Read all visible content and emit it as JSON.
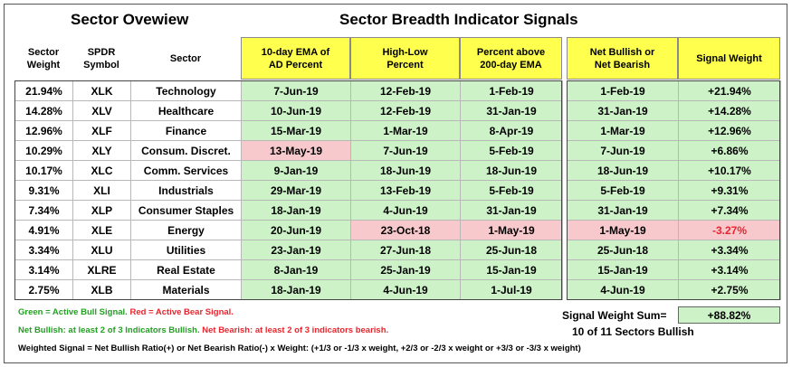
{
  "titles": {
    "left": "Sector Ovewiew",
    "right": "Sector Breadth Indicator Signals"
  },
  "headers": {
    "weight": "Sector\nWeight",
    "symbol": "SPDR\nSymbol",
    "sector": "Sector",
    "ad": "10-day EMA of\nAD Percent",
    "hl": "High-Low\nPercent",
    "p200": "Percent above\n200-day EMA",
    "net": "Net Bullish or\nNet Bearish",
    "sw": "Signal Weight"
  },
  "rows": [
    {
      "weight": "21.94%",
      "symbol": "XLK",
      "sector": "Technology",
      "ad": "7-Jun-19",
      "hl": "12-Feb-19",
      "p200": "1-Feb-19",
      "net": "1-Feb-19",
      "sw": "+21.94%",
      "ad_state": "bull",
      "hl_state": "bull",
      "p200_state": "bull",
      "net_state": "bull",
      "sw_state": "bull"
    },
    {
      "weight": "14.28%",
      "symbol": "XLV",
      "sector": "Healthcare",
      "ad": "10-Jun-19",
      "hl": "12-Feb-19",
      "p200": "31-Jan-19",
      "net": "31-Jan-19",
      "sw": "+14.28%",
      "ad_state": "bull",
      "hl_state": "bull",
      "p200_state": "bull",
      "net_state": "bull",
      "sw_state": "bull"
    },
    {
      "weight": "12.96%",
      "symbol": "XLF",
      "sector": "Finance",
      "ad": "15-Mar-19",
      "hl": "1-Mar-19",
      "p200": "8-Apr-19",
      "net": "1-Mar-19",
      "sw": "+12.96%",
      "ad_state": "bull",
      "hl_state": "bull",
      "p200_state": "bull",
      "net_state": "bull",
      "sw_state": "bull"
    },
    {
      "weight": "10.29%",
      "symbol": "XLY",
      "sector": "Consum. Discret.",
      "ad": "13-May-19",
      "hl": "7-Jun-19",
      "p200": "5-Feb-19",
      "net": "7-Jun-19",
      "sw": "+6.86%",
      "ad_state": "bear",
      "hl_state": "bull",
      "p200_state": "bull",
      "net_state": "bull",
      "sw_state": "bull"
    },
    {
      "weight": "10.17%",
      "symbol": "XLC",
      "sector": "Comm. Services",
      "ad": "9-Jan-19",
      "hl": "18-Jun-19",
      "p200": "18-Jun-19",
      "net": "18-Jun-19",
      "sw": "+10.17%",
      "ad_state": "bull",
      "hl_state": "bull",
      "p200_state": "bull",
      "net_state": "bull",
      "sw_state": "bull"
    },
    {
      "weight": "9.31%",
      "symbol": "XLI",
      "sector": "Industrials",
      "ad": "29-Mar-19",
      "hl": "13-Feb-19",
      "p200": "5-Feb-19",
      "net": "5-Feb-19",
      "sw": "+9.31%",
      "ad_state": "bull",
      "hl_state": "bull",
      "p200_state": "bull",
      "net_state": "bull",
      "sw_state": "bull"
    },
    {
      "weight": "7.34%",
      "symbol": "XLP",
      "sector": "Consumer Staples",
      "ad": "18-Jan-19",
      "hl": "4-Jun-19",
      "p200": "31-Jan-19",
      "net": "31-Jan-19",
      "sw": "+7.34%",
      "ad_state": "bull",
      "hl_state": "bull",
      "p200_state": "bull",
      "net_state": "bull",
      "sw_state": "bull"
    },
    {
      "weight": "4.91%",
      "symbol": "XLE",
      "sector": "Energy",
      "ad": "20-Jun-19",
      "hl": "23-Oct-18",
      "p200": "1-May-19",
      "net": "1-May-19",
      "sw": "-3.27%",
      "ad_state": "bull",
      "hl_state": "bear",
      "p200_state": "bear",
      "net_state": "bear",
      "sw_state": "bear"
    },
    {
      "weight": "3.34%",
      "symbol": "XLU",
      "sector": "Utilities",
      "ad": "23-Jan-19",
      "hl": "27-Jun-18",
      "p200": "25-Jun-18",
      "net": "25-Jun-18",
      "sw": "+3.34%",
      "ad_state": "bull",
      "hl_state": "bull",
      "p200_state": "bull",
      "net_state": "bull",
      "sw_state": "bull"
    },
    {
      "weight": "3.14%",
      "symbol": "XLRE",
      "sector": "Real Estate",
      "ad": "8-Jan-19",
      "hl": "25-Jan-19",
      "p200": "15-Jan-19",
      "net": "15-Jan-19",
      "sw": "+3.14%",
      "ad_state": "bull",
      "hl_state": "bull",
      "p200_state": "bull",
      "net_state": "bull",
      "sw_state": "bull"
    },
    {
      "weight": "2.75%",
      "symbol": "XLB",
      "sector": "Materials",
      "ad": "18-Jan-19",
      "hl": "4-Jun-19",
      "p200": "1-Jul-19",
      "net": "4-Jun-19",
      "sw": "+2.75%",
      "ad_state": "bull",
      "hl_state": "bull",
      "p200_state": "bull",
      "net_state": "bull",
      "sw_state": "bull"
    }
  ],
  "footer": {
    "legend_green": "Green = Active Bull Signal.",
    "legend_red": "Red = Active Bear Signal.",
    "net_bullish": "Net Bullish: at least 2 of 3 Indicators Bullish.",
    "net_bearish": "Net Bearish: at least 2 of 3 indicators bearish.",
    "weighted": "Weighted Signal = Net Bullish Ratio(+) or Net Bearish Ratio(-) x Weight: (+1/3 or -1/3 x weight, +2/3 or -2/3 x weight or +3/3 or -3/3 x weight)",
    "sum_label": "Signal Weight Sum=",
    "sum_value": "+88.82%",
    "bullish_count": "10 of 11 Sectors Bullish"
  },
  "colors": {
    "bull_fill": "#cdf2c8",
    "bear_fill": "#f7c9cd",
    "header_fill": "#ffff4d",
    "green_text": "#22a022",
    "red_text": "#e6262e"
  }
}
